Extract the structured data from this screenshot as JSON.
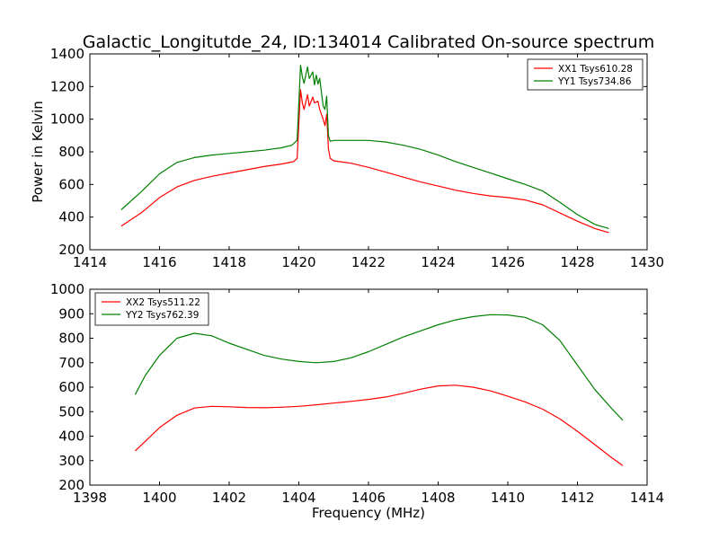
{
  "chart_data": [
    {
      "type": "line",
      "title": "Galactic_Longitutde_24, ID:134014 Calibrated On-source spectrum",
      "xlabel": "",
      "ylabel": "Power in Kelvin",
      "xlim": [
        1414,
        1430
      ],
      "ylim": [
        200,
        1400
      ],
      "xticks": [
        "1414",
        "1416",
        "1418",
        "1420",
        "1422",
        "1424",
        "1426",
        "1428",
        "1430"
      ],
      "yticks": [
        "200",
        "400",
        "600",
        "800",
        "1000",
        "1200",
        "1400"
      ],
      "grid": false,
      "legend": "top-right",
      "series": [
        {
          "name": "XX1 Tsys610.28",
          "color": "#ff0000",
          "x": [
            1414.9,
            1415.5,
            1416.0,
            1416.5,
            1417.0,
            1417.5,
            1418.0,
            1418.5,
            1419.0,
            1419.5,
            1419.85,
            1419.95,
            1420.05,
            1420.1,
            1420.15,
            1420.25,
            1420.3,
            1420.4,
            1420.45,
            1420.55,
            1420.6,
            1420.7,
            1420.75,
            1420.8,
            1420.85,
            1420.9,
            1421.0,
            1421.5,
            1422.0,
            1422.5,
            1423.0,
            1423.5,
            1424.0,
            1424.5,
            1425.0,
            1425.5,
            1426.0,
            1426.5,
            1427.0,
            1427.5,
            1428.0,
            1428.5,
            1428.9
          ],
          "y": [
            345,
            430,
            520,
            585,
            625,
            650,
            670,
            690,
            710,
            725,
            740,
            760,
            1180,
            1100,
            1060,
            1150,
            1080,
            1135,
            1100,
            1110,
            1060,
            1000,
            960,
            1030,
            820,
            760,
            745,
            730,
            705,
            675,
            645,
            615,
            590,
            565,
            545,
            530,
            520,
            505,
            475,
            425,
            375,
            330,
            305
          ]
        },
        {
          "name": "YY1 Tsys734.86",
          "color": "#008000",
          "x": [
            1414.9,
            1415.5,
            1416.0,
            1416.5,
            1417.0,
            1417.5,
            1418.0,
            1418.5,
            1419.0,
            1419.5,
            1419.8,
            1419.95,
            1420.05,
            1420.1,
            1420.15,
            1420.25,
            1420.3,
            1420.4,
            1420.45,
            1420.5,
            1420.55,
            1420.6,
            1420.7,
            1420.75,
            1420.8,
            1420.85,
            1420.9,
            1421.0,
            1421.5,
            1422.0,
            1422.5,
            1423.0,
            1423.5,
            1424.0,
            1424.5,
            1425.0,
            1425.5,
            1426.0,
            1426.5,
            1427.0,
            1427.5,
            1428.0,
            1428.5,
            1428.9
          ],
          "y": [
            445,
            560,
            665,
            735,
            765,
            780,
            790,
            800,
            810,
            825,
            840,
            870,
            1330,
            1260,
            1220,
            1320,
            1250,
            1290,
            1210,
            1270,
            1215,
            1250,
            1080,
            1060,
            1140,
            900,
            865,
            870,
            870,
            870,
            860,
            840,
            815,
            780,
            740,
            705,
            670,
            635,
            600,
            560,
            490,
            415,
            355,
            330
          ]
        }
      ]
    },
    {
      "type": "line",
      "title": "",
      "xlabel": "Frequency (MHz)",
      "ylabel": "",
      "xlim": [
        1398,
        1414
      ],
      "ylim": [
        200,
        1000
      ],
      "xticks": [
        "1398",
        "1400",
        "1402",
        "1404",
        "1406",
        "1408",
        "1410",
        "1412",
        "1414"
      ],
      "yticks": [
        "200",
        "300",
        "400",
        "500",
        "600",
        "700",
        "800",
        "900",
        "1000"
      ],
      "grid": false,
      "legend": "top-left",
      "series": [
        {
          "name": "XX2 Tsys511.22",
          "color": "#ff0000",
          "x": [
            1399.3,
            1399.6,
            1400.0,
            1400.5,
            1401.0,
            1401.5,
            1402.0,
            1402.5,
            1403.0,
            1403.5,
            1404.0,
            1404.5,
            1405.0,
            1405.5,
            1406.0,
            1406.5,
            1407.0,
            1407.5,
            1408.0,
            1408.5,
            1409.0,
            1409.5,
            1410.0,
            1410.5,
            1411.0,
            1411.5,
            1412.0,
            1412.5,
            1413.0,
            1413.3
          ],
          "y": [
            340,
            380,
            435,
            485,
            515,
            522,
            520,
            517,
            516,
            518,
            522,
            528,
            535,
            542,
            550,
            560,
            575,
            592,
            605,
            608,
            600,
            585,
            563,
            540,
            510,
            470,
            420,
            365,
            310,
            280
          ]
        },
        {
          "name": "YY2 Tsys762.39",
          "color": "#008000",
          "x": [
            1399.3,
            1399.6,
            1400.0,
            1400.5,
            1401.0,
            1401.5,
            1402.0,
            1402.5,
            1403.0,
            1403.5,
            1404.0,
            1404.5,
            1405.0,
            1405.5,
            1406.0,
            1406.5,
            1407.0,
            1407.5,
            1408.0,
            1408.5,
            1409.0,
            1409.5,
            1410.0,
            1410.5,
            1411.0,
            1411.5,
            1412.0,
            1412.5,
            1413.0,
            1413.3
          ],
          "y": [
            570,
            650,
            730,
            800,
            820,
            810,
            780,
            755,
            730,
            715,
            705,
            700,
            705,
            720,
            745,
            775,
            805,
            830,
            855,
            875,
            888,
            896,
            895,
            885,
            855,
            790,
            690,
            590,
            510,
            465
          ]
        }
      ]
    }
  ]
}
